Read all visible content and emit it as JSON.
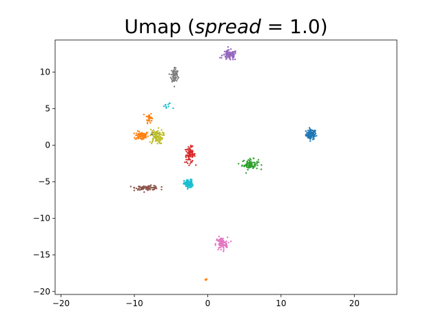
{
  "chart_data": {
    "type": "scatter",
    "title": {
      "prefix": "Umap (",
      "var": "spread",
      "eq": " = ",
      "value": "1.0",
      "suffix": ")"
    },
    "xlabel": "",
    "ylabel": "",
    "xlim": [
      -20.8,
      25.8
    ],
    "ylim": [
      -20.4,
      14.4
    ],
    "xticks": [
      -20,
      -10,
      0,
      10,
      20
    ],
    "yticks": [
      -20,
      -15,
      -10,
      -5,
      0,
      5,
      10
    ],
    "grid": false,
    "legend": "none",
    "clusters": [
      {
        "id": "blue",
        "color": "#1f77b4",
        "points": [
          {
            "cx": 14.1,
            "cy": 1.5,
            "sx": 0.35,
            "sy": 0.35,
            "n": 90
          }
        ]
      },
      {
        "id": "orange",
        "color": "#ff7f0e",
        "points": [
          {
            "cx": -9.0,
            "cy": 1.3,
            "sx": 0.45,
            "sy": 0.3,
            "n": 70
          },
          {
            "cx": -8.0,
            "cy": 3.8,
            "sx": 0.2,
            "sy": 0.35,
            "n": 30
          },
          {
            "cx": -0.2,
            "cy": -18.4,
            "sx": 0.1,
            "sy": 0.1,
            "n": 4
          }
        ]
      },
      {
        "id": "green",
        "color": "#2ca02c",
        "points": [
          {
            "cx": 5.8,
            "cy": -2.6,
            "sx": 0.55,
            "sy": 0.35,
            "n": 80
          }
        ]
      },
      {
        "id": "red",
        "color": "#d62728",
        "points": [
          {
            "cx": -2.4,
            "cy": -1.3,
            "sx": 0.35,
            "sy": 0.55,
            "n": 80
          }
        ]
      },
      {
        "id": "purple",
        "color": "#9467bd",
        "points": [
          {
            "cx": 3.0,
            "cy": 12.3,
            "sx": 0.5,
            "sy": 0.35,
            "n": 90
          }
        ]
      },
      {
        "id": "brown",
        "color": "#8c564b",
        "points": [
          {
            "cx": -8.2,
            "cy": -5.8,
            "sx": 0.8,
            "sy": 0.15,
            "n": 90
          }
        ]
      },
      {
        "id": "pink",
        "color": "#e377c2",
        "points": [
          {
            "cx": 1.9,
            "cy": -13.5,
            "sx": 0.4,
            "sy": 0.45,
            "n": 90
          }
        ]
      },
      {
        "id": "gray",
        "color": "#7f7f7f",
        "points": [
          {
            "cx": -4.5,
            "cy": 9.6,
            "sx": 0.25,
            "sy": 0.55,
            "n": 80
          },
          {
            "cx": -7.2,
            "cy": 1.6,
            "sx": 0.2,
            "sy": 0.1,
            "n": 6
          }
        ]
      },
      {
        "id": "olive",
        "color": "#bcbd22",
        "points": [
          {
            "cx": -7.0,
            "cy": 1.2,
            "sx": 0.45,
            "sy": 0.5,
            "n": 90
          }
        ]
      },
      {
        "id": "cyan",
        "color": "#17becf",
        "points": [
          {
            "cx": -2.6,
            "cy": -5.3,
            "sx": 0.3,
            "sy": 0.3,
            "n": 80
          },
          {
            "cx": -5.5,
            "cy": 5.3,
            "sx": 0.35,
            "sy": 0.25,
            "n": 10
          }
        ]
      }
    ]
  }
}
